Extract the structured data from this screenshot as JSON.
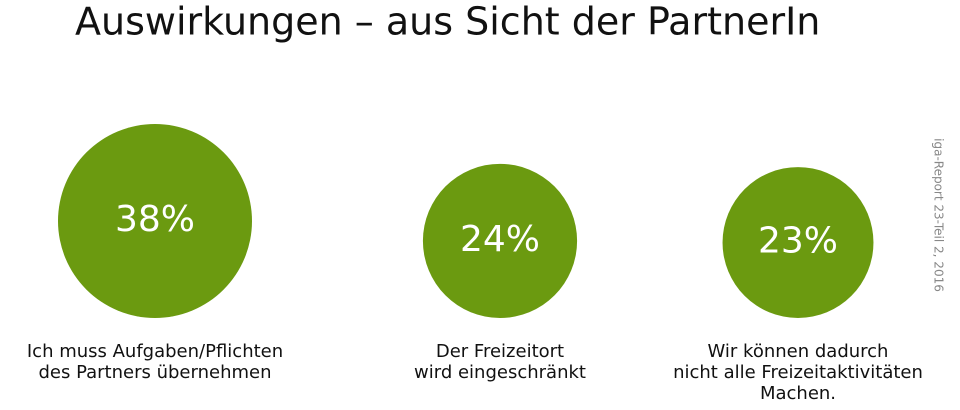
{
  "chart_data": {
    "type": "bubble",
    "title": "Auswirkungen – aus Sicht der PartnerIn",
    "source": "iga-Report 23-Teil 2, 2016",
    "categories": [
      [
        "Ich muss Aufgaben/Pflichten",
        "des Partners übernehmen"
      ],
      [
        "Der Freizeitort",
        "wird eingeschränkt"
      ],
      [
        "Wir können dadurch",
        "nicht alle Freizeitaktivitäten",
        "Machen."
      ]
    ],
    "values": [
      38,
      24,
      23
    ],
    "value_labels": [
      "38%",
      "24%",
      "23%"
    ],
    "color": "#6b9a10"
  }
}
